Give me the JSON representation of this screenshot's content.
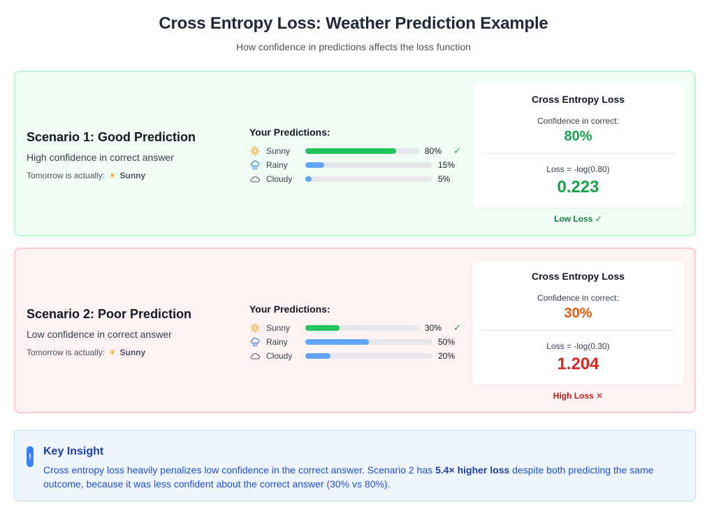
{
  "page": {
    "title": "Cross Entropy Loss: Weather Prediction Example",
    "subtitle": "How confidence in predictions affects the loss function"
  },
  "scenarios": [
    {
      "title": "Scenario 1: Good Prediction",
      "description": "High confidence in correct answer",
      "actual_prefix": "Tomorrow is actually:",
      "actual_icon": "sun-icon",
      "actual_value": "Sunny",
      "predictions_title": "Your Predictions:",
      "predictions": [
        {
          "label": "Sunny",
          "icon": "sun-icon",
          "value": 0.8,
          "pct_label": "80%",
          "color": "#22c55e",
          "correct": true
        },
        {
          "label": "Rainy",
          "icon": "rain-cloud-icon",
          "value": 0.15,
          "pct_label": "15%",
          "color": "#60a5fa",
          "correct": false
        },
        {
          "label": "Cloudy",
          "icon": "cloud-icon",
          "value": 0.05,
          "pct_label": "5%",
          "color": "#60a5fa",
          "correct": false
        }
      ],
      "loss_box": {
        "title": "Cross Entropy Loss",
        "confidence_label": "Confidence in correct:",
        "confidence_value": "80%",
        "confidence_color": "#16a34a",
        "formula": "Loss = -log(0.80)",
        "loss_value": "0.223",
        "loss_color": "#16a34a"
      },
      "verdict": "Low Loss ✓",
      "verdict_color": "#15803d"
    },
    {
      "title": "Scenario 2: Poor Prediction",
      "description": "Low confidence in correct answer",
      "actual_prefix": "Tomorrow is actually:",
      "actual_icon": "sun-icon",
      "actual_value": "Sunny",
      "predictions_title": "Your Predictions:",
      "predictions": [
        {
          "label": "Sunny",
          "icon": "sun-icon",
          "value": 0.3,
          "pct_label": "30%",
          "color": "#22c55e",
          "correct": true
        },
        {
          "label": "Rainy",
          "icon": "rain-cloud-icon",
          "value": 0.5,
          "pct_label": "50%",
          "color": "#60a5fa",
          "correct": false
        },
        {
          "label": "Cloudy",
          "icon": "cloud-icon",
          "value": 0.2,
          "pct_label": "20%",
          "color": "#60a5fa",
          "correct": false
        }
      ],
      "loss_box": {
        "title": "Cross Entropy Loss",
        "confidence_label": "Confidence in correct:",
        "confidence_value": "30%",
        "confidence_color": "#ea580c",
        "formula": "Loss = -log(0.30)",
        "loss_value": "1.204",
        "loss_color": "#dc2626"
      },
      "verdict": "High Loss ✕",
      "verdict_color": "#b91c1c"
    }
  ],
  "insight": {
    "icon": "exclamation-icon",
    "icon_glyph": "!",
    "title": "Key Insight",
    "text_before": "Cross entropy loss heavily penalizes low confidence in the correct answer. Scenario 2 has ",
    "text_bold": "5.4× higher loss",
    "text_after": " despite both predicting the same outcome, because it was less confident about the correct answer (30% vs 80%)."
  },
  "check_glyph": "✓",
  "sun_glyph": "☀"
}
